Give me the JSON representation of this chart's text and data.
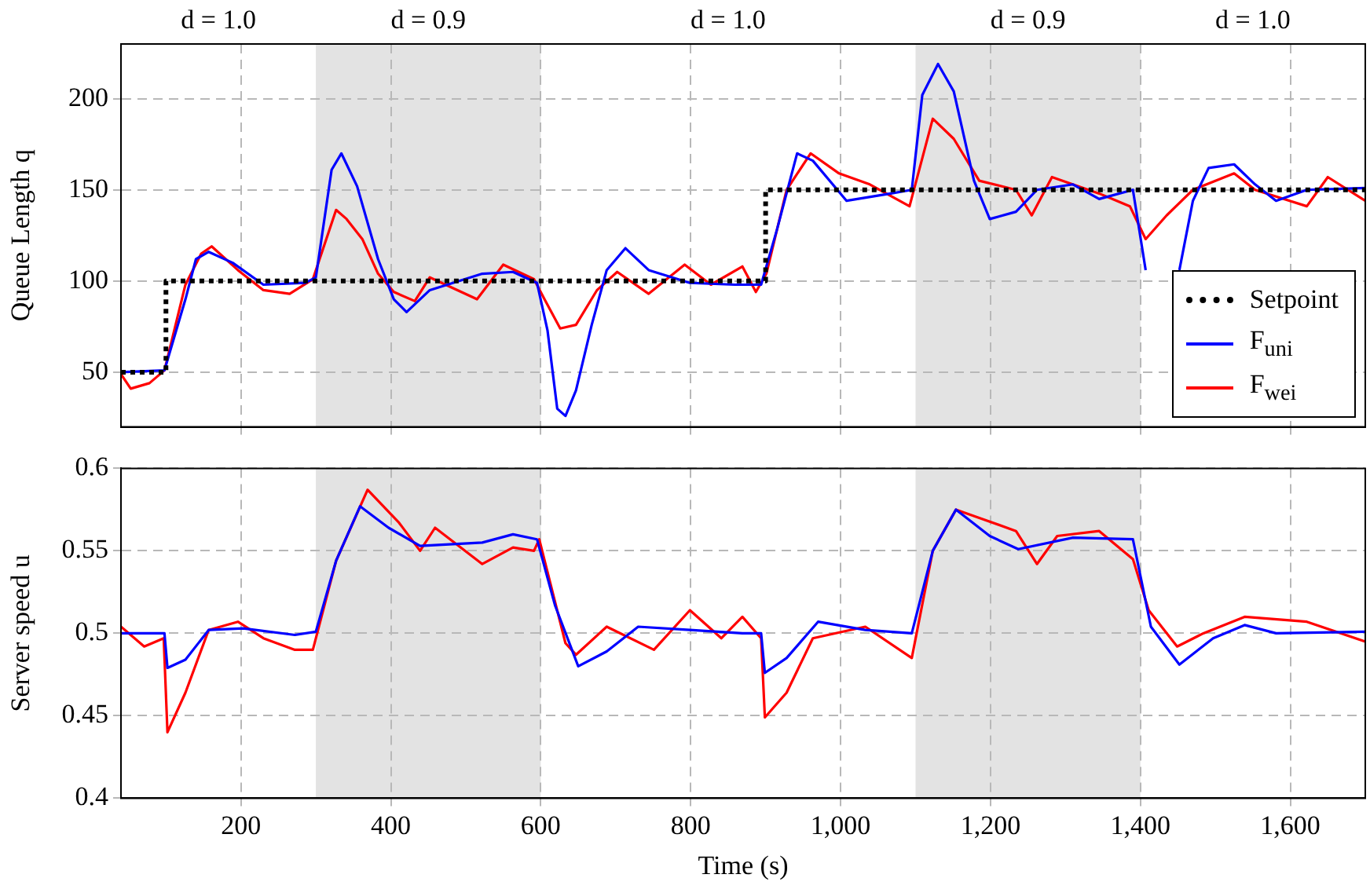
{
  "chart_data": [
    {
      "type": "line",
      "ylabel": "Queue Length q",
      "xlim": [
        40,
        1700
      ],
      "ylim": [
        20,
        230
      ],
      "xticks": [
        200,
        400,
        600,
        800,
        1000,
        1200,
        1400,
        1600
      ],
      "yticks": [
        50,
        100,
        150,
        200
      ],
      "tick_labels": "y",
      "grid": true,
      "legend": "bottom right",
      "marker": "none",
      "bands": [
        {
          "axis": "x",
          "from": 300,
          "to": 600,
          "label": "d = 0.9",
          "color": "#e3e3e3"
        },
        {
          "axis": "x",
          "from": 1100,
          "to": 1400,
          "label": "d = 0.9",
          "color": "#e3e3e3"
        }
      ],
      "annotations": [
        "d = 1.0",
        "d = 1.0",
        "d = 1.0"
      ],
      "series": [
        {
          "name": "Setpoint",
          "type": "step",
          "line_style": "dotted",
          "color": "#000000",
          "x": [
            40,
            100,
            900,
            1700
          ],
          "values": [
            50,
            100,
            150,
            150
          ]
        },
        {
          "name": "F$_{uni}$",
          "color": "#0000ff",
          "x": [
            40,
            98,
            126,
            140,
            157,
            189,
            230,
            286,
            300,
            321,
            334,
            355,
            383,
            404,
            421,
            452,
            522,
            563,
            595,
            609,
            622,
            633,
            647,
            668,
            688,
            713,
            744,
            799,
            859,
            894,
            915,
            942,
            963,
            1008,
            1067,
            1095,
            1109,
            1130,
            1151,
            1178,
            1199,
            1234,
            1262,
            1310,
            1345,
            1390,
            1407,
            1430,
            1452,
            1470,
            1491,
            1525,
            1553,
            1581,
            1622,
            1700
          ],
          "values": [
            50,
            51,
            90,
            112,
            116,
            110,
            98,
            99,
            102,
            161,
            170,
            152,
            112,
            90,
            83,
            95,
            104,
            105,
            99,
            73,
            30,
            26,
            40,
            76,
            106,
            118,
            106,
            99,
            98,
            98,
            128,
            170,
            166,
            144,
            148,
            150,
            202,
            219,
            204,
            155,
            134,
            138,
            150,
            153,
            145,
            150,
            106,
            null,
            106,
            144,
            162,
            164,
            153,
            144,
            150,
            151
          ]
        },
        {
          "name": "F$_{wei}$",
          "color": "#ff0000",
          "x": [
            40,
            53,
            78,
            98,
            126,
            147,
            161,
            196,
            230,
            265,
            296,
            327,
            341,
            362,
            383,
            404,
            432,
            452,
            515,
            550,
            591,
            605,
            626,
            647,
            675,
            702,
            744,
            792,
            827,
            869,
            887,
            901,
            928,
            960,
            998,
            1039,
            1092,
            1123,
            1151,
            1185,
            1234,
            1255,
            1282,
            1345,
            1386,
            1407,
            1435,
            1470,
            1525,
            1553,
            1622,
            1650,
            1700
          ],
          "values": [
            49,
            41,
            44,
            51,
            98,
            115,
            119,
            106,
            95,
            93,
            101,
            139,
            134,
            123,
            104,
            94,
            89,
            102,
            90,
            109,
            101,
            90,
            74,
            76,
            95,
            105,
            93,
            109,
            98,
            108,
            94,
            104,
            150,
            170,
            159,
            153,
            141,
            189,
            178,
            155,
            150,
            136,
            157,
            148,
            141,
            123,
            136,
            150,
            159,
            150,
            141,
            157,
            144
          ]
        }
      ]
    },
    {
      "type": "line",
      "xlabel": "Time (s)",
      "ylabel": "Server speed u",
      "xlim": [
        40,
        1700
      ],
      "ylim": [
        0.4,
        0.6
      ],
      "xticks": [
        {
          "value": 200,
          "label": "200"
        },
        {
          "value": 400,
          "label": "400"
        },
        {
          "value": 600,
          "label": "600"
        },
        {
          "value": 800,
          "label": "800"
        },
        {
          "value": 1000,
          "label": "1,000"
        },
        {
          "value": 1200,
          "label": "1,200"
        },
        {
          "value": 1400,
          "label": "1,400"
        },
        {
          "value": 1600,
          "label": "1,600"
        }
      ],
      "yticks": [
        0.4,
        0.45,
        0.5,
        0.55,
        0.6
      ],
      "grid": true,
      "marker": "none",
      "bands": [
        {
          "axis": "x",
          "from": 300,
          "to": 600,
          "color": "#e3e3e3"
        },
        {
          "axis": "x",
          "from": 1100,
          "to": 1400,
          "color": "#e3e3e3"
        }
      ],
      "series": [
        {
          "color": "#0000ff",
          "x": [
            40,
            98,
            102,
            126,
            157,
            203,
            272,
            300,
            327,
            359,
            397,
            439,
            522,
            563,
            595,
            619,
            650,
            688,
            730,
            799,
            869,
            894,
            899,
            928,
            970,
            1033,
            1095,
            1123,
            1154,
            1199,
            1237,
            1310,
            1390,
            1414,
            1452,
            1497,
            1539,
            1581,
            1700
          ],
          "values": [
            0.5,
            0.5,
            0.479,
            0.484,
            0.502,
            0.503,
            0.499,
            0.501,
            0.544,
            0.577,
            0.564,
            0.553,
            0.555,
            0.56,
            0.557,
            0.517,
            0.48,
            0.489,
            0.504,
            0.502,
            0.5,
            0.5,
            0.476,
            0.485,
            0.507,
            0.502,
            0.5,
            0.55,
            0.575,
            0.559,
            0.551,
            0.558,
            0.557,
            0.504,
            0.481,
            0.497,
            0.505,
            0.5,
            0.501
          ]
        },
        {
          "color": "#ff0000",
          "x": [
            40,
            71,
            97,
            102,
            126,
            157,
            196,
            230,
            272,
            296,
            327,
            369,
            411,
            439,
            459,
            522,
            563,
            591,
            598,
            633,
            647,
            688,
            751,
            799,
            841,
            869,
            894,
            899,
            928,
            963,
            1033,
            1095,
            1123,
            1154,
            1185,
            1234,
            1262,
            1289,
            1345,
            1390,
            1411,
            1449,
            1484,
            1539,
            1622,
            1700
          ],
          "values": [
            0.504,
            0.492,
            0.497,
            0.44,
            0.464,
            0.502,
            0.507,
            0.497,
            0.49,
            0.49,
            0.544,
            0.587,
            0.567,
            0.55,
            0.564,
            0.542,
            0.552,
            0.55,
            0.557,
            0.494,
            0.487,
            0.504,
            0.49,
            0.514,
            0.497,
            0.51,
            0.497,
            0.449,
            0.464,
            0.497,
            0.504,
            0.485,
            0.55,
            0.575,
            0.57,
            0.562,
            0.542,
            0.559,
            0.562,
            0.545,
            0.514,
            0.492,
            0.5,
            0.51,
            0.507,
            0.495
          ]
        }
      ]
    }
  ]
}
